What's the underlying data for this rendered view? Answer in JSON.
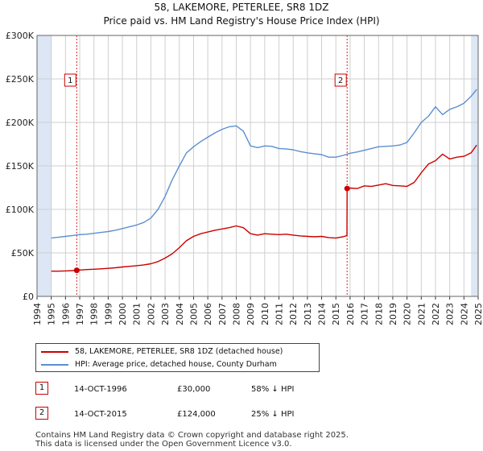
{
  "colors": {
    "price": "#cc0000",
    "hpi": "#5b8fd0",
    "shade": "#dde6f5",
    "grid": "#cfcfcf"
  },
  "chart_data": {
    "type": "line",
    "title": "58, LAKEMORE, PETERLEE, SR8 1DZ",
    "subtitle": "Price paid vs. HM Land Registry's House Price Index (HPI)",
    "xlim": [
      1994,
      2025
    ],
    "ylim": [
      0,
      300000
    ],
    "y_ticks": [
      {
        "value": 0,
        "label": "£0"
      },
      {
        "value": 50000,
        "label": "£50K"
      },
      {
        "value": 100000,
        "label": "£100K"
      },
      {
        "value": 150000,
        "label": "£150K"
      },
      {
        "value": 200000,
        "label": "£200K"
      },
      {
        "value": 250000,
        "label": "£250K"
      },
      {
        "value": 300000,
        "label": "£300K"
      }
    ],
    "x_ticks": [
      "1994",
      "1995",
      "1996",
      "1997",
      "1998",
      "1999",
      "2000",
      "2001",
      "2002",
      "2003",
      "2004",
      "2005",
      "2006",
      "2007",
      "2008",
      "2009",
      "2010",
      "2011",
      "2012",
      "2013",
      "2014",
      "2015",
      "2016",
      "2017",
      "2018",
      "2019",
      "2020",
      "2021",
      "2022",
      "2023",
      "2024",
      "2025"
    ],
    "shaded_ranges": [
      [
        1994,
        1995
      ],
      [
        2024.5,
        2025
      ]
    ],
    "series": [
      {
        "name": "58, LAKEMORE, PETERLEE, SR8 1DZ (detached house)",
        "color": "#cc0000",
        "x": [
          1995,
          1995.5,
          1996,
          1996.5,
          1996.79,
          1997,
          1997.5,
          1998,
          1998.5,
          1999,
          1999.5,
          2000,
          2000.5,
          2001,
          2001.5,
          2002,
          2002.5,
          2003,
          2003.5,
          2004,
          2004.5,
          2005,
          2005.5,
          2006,
          2006.5,
          2007,
          2007.5,
          2008,
          2008.5,
          2009,
          2009.5,
          2010,
          2010.5,
          2011,
          2011.5,
          2012,
          2012.5,
          2013,
          2013.5,
          2014,
          2014.5,
          2015,
          2015.5,
          2015.78,
          2015.79,
          2016,
          2016.5,
          2017,
          2017.5,
          2018,
          2018.5,
          2019,
          2019.5,
          2020,
          2020.5,
          2021,
          2021.5,
          2022,
          2022.5,
          2023,
          2023.5,
          2024,
          2024.5,
          2024.9
        ],
        "values": [
          29000,
          29000,
          29300,
          29600,
          30000,
          30300,
          30800,
          31200,
          31700,
          32200,
          32900,
          33800,
          34500,
          35300,
          36200,
          37500,
          40000,
          44000,
          49000,
          56000,
          64000,
          69000,
          72000,
          74000,
          76000,
          77500,
          79000,
          81000,
          79000,
          72000,
          70500,
          72000,
          71500,
          71000,
          71500,
          70500,
          69500,
          69000,
          68500,
          69000,
          67500,
          67000,
          68500,
          70000,
          124000,
          124500,
          124000,
          127000,
          126500,
          128000,
          129500,
          127500,
          127000,
          126500,
          131000,
          142000,
          152000,
          156000,
          163500,
          158000,
          160000,
          161000,
          165000,
          174000
        ]
      },
      {
        "name": "HPI: Average price, detached house, County Durham",
        "color": "#5b8fd0",
        "x": [
          1995,
          1995.5,
          1996,
          1996.5,
          1997,
          1997.5,
          1998,
          1998.5,
          1999,
          1999.5,
          2000,
          2000.5,
          2001,
          2001.5,
          2002,
          2002.5,
          2003,
          2003.5,
          2004,
          2004.5,
          2005,
          2005.5,
          2006,
          2006.5,
          2007,
          2007.5,
          2008,
          2008.5,
          2009,
          2009.5,
          2010,
          2010.5,
          2011,
          2011.5,
          2012,
          2012.5,
          2013,
          2013.5,
          2014,
          2014.5,
          2015,
          2015.5,
          2016,
          2016.5,
          2017,
          2017.5,
          2018,
          2018.5,
          2019,
          2019.5,
          2020,
          2020.5,
          2021,
          2021.5,
          2022,
          2022.5,
          2023,
          2023.5,
          2024,
          2024.5,
          2024.9
        ],
        "values": [
          67000,
          68000,
          69000,
          70000,
          71000,
          71500,
          72500,
          73500,
          74500,
          76000,
          78000,
          80000,
          82000,
          85000,
          90000,
          100000,
          115000,
          134000,
          150000,
          165000,
          172000,
          178000,
          183000,
          188000,
          192000,
          195000,
          196000,
          190000,
          173000,
          171000,
          173000,
          172500,
          170000,
          169500,
          168500,
          166500,
          165000,
          164000,
          163000,
          160000,
          160000,
          162000,
          164500,
          166000,
          168000,
          170000,
          172000,
          172500,
          173000,
          174000,
          177000,
          188000,
          200000,
          207000,
          218000,
          209000,
          215000,
          218000,
          222000,
          230000,
          238000
        ]
      }
    ],
    "markers": [
      {
        "label": "1",
        "x": 1996.79,
        "value": 30000
      },
      {
        "label": "2",
        "x": 2015.79,
        "value": 124000
      }
    ]
  },
  "legend": {
    "items": [
      {
        "label": "58, LAKEMORE, PETERLEE, SR8 1DZ (detached house)"
      },
      {
        "label": "HPI: Average price, detached house, County Durham"
      }
    ]
  },
  "transactions": [
    {
      "label": "1",
      "date": "14-OCT-1996",
      "price": "£30,000",
      "hpi": "58% ↓ HPI"
    },
    {
      "label": "2",
      "date": "14-OCT-2015",
      "price": "£124,000",
      "hpi": "25% ↓ HPI"
    }
  ],
  "footer": {
    "line1": "Contains HM Land Registry data © Crown copyright and database right 2025.",
    "line2": "This data is licensed under the Open Government Licence v3.0."
  }
}
